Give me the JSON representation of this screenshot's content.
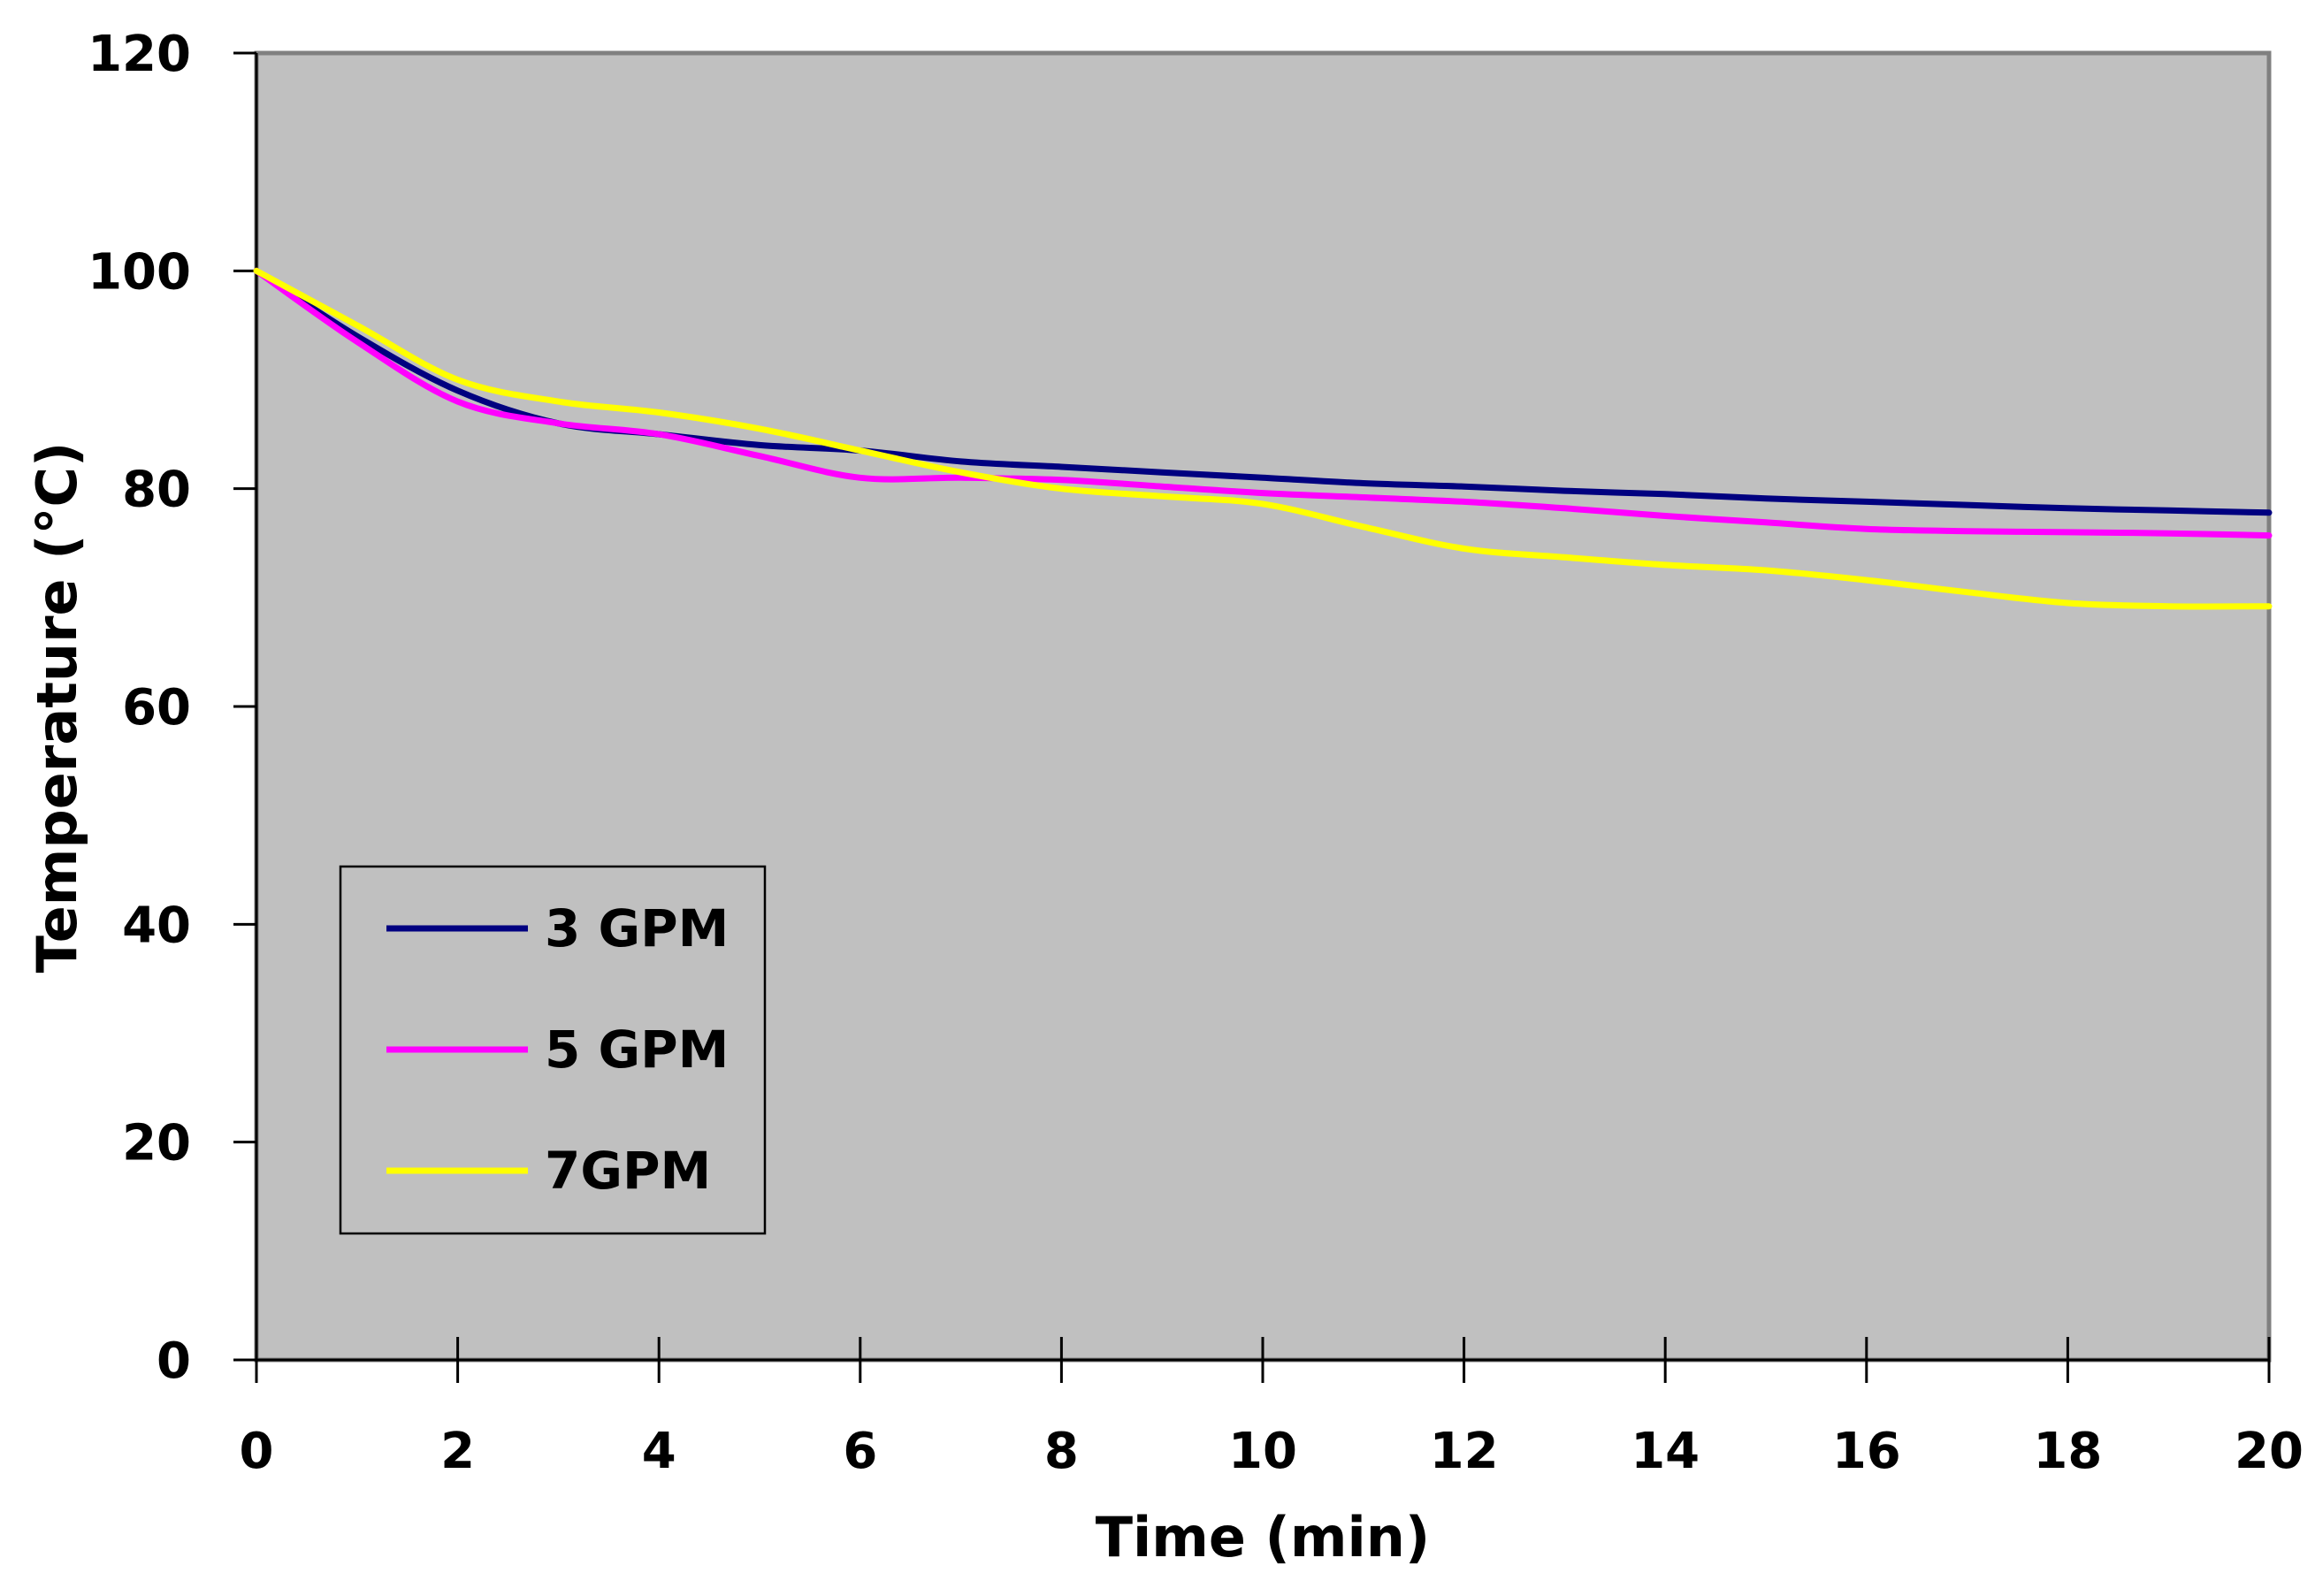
{
  "chart_data": {
    "type": "line",
    "title": "",
    "xlabel": "Time (min)",
    "ylabel": "Temperature (°C)",
    "xlim": [
      0,
      20
    ],
    "ylim": [
      0,
      120
    ],
    "x_ticks": [
      0,
      2,
      4,
      6,
      8,
      10,
      12,
      14,
      16,
      18,
      20
    ],
    "y_ticks": [
      0,
      20,
      40,
      60,
      80,
      100,
      120
    ],
    "grid": false,
    "legend_position": "bottom-left",
    "plot_background": "#c0c0c0",
    "series": [
      {
        "name": "3 GPM",
        "color": "#000080",
        "x": [
          0,
          1,
          2,
          3,
          4,
          5,
          6,
          7,
          8,
          9,
          10,
          11,
          12,
          13,
          14,
          15,
          16,
          17,
          18,
          19,
          20
        ],
        "values": [
          100,
          94,
          89,
          86,
          85,
          84,
          83.5,
          82.5,
          82,
          81.5,
          81,
          80.5,
          80.2,
          79.8,
          79.5,
          79.1,
          78.8,
          78.5,
          78.2,
          78,
          77.8
        ]
      },
      {
        "name": "5 GPM",
        "color": "#ff00ff",
        "x": [
          0,
          1,
          2,
          3,
          4,
          5,
          6,
          7,
          8,
          9,
          10,
          11,
          12,
          13,
          14,
          15,
          16,
          17,
          18,
          19,
          20
        ],
        "values": [
          100,
          93.5,
          88,
          86,
          85,
          83,
          81,
          81,
          80.8,
          80.2,
          79.6,
          79.2,
          78.8,
          78.2,
          77.5,
          76.9,
          76.3,
          76.1,
          76,
          75.9,
          75.7
        ]
      },
      {
        "name": "7GPM",
        "color": "#ffff00",
        "x": [
          0,
          1,
          2,
          3,
          4,
          5,
          6,
          7,
          8,
          9,
          10,
          11,
          12,
          13,
          14,
          15,
          16,
          17,
          18,
          19,
          20
        ],
        "values": [
          100,
          95,
          90,
          88,
          87,
          85.5,
          83.5,
          81.5,
          80,
          79.3,
          78.6,
          76.5,
          74.5,
          73.7,
          73,
          72.5,
          71.6,
          70.5,
          69.5,
          69.2,
          69.2
        ]
      }
    ]
  }
}
